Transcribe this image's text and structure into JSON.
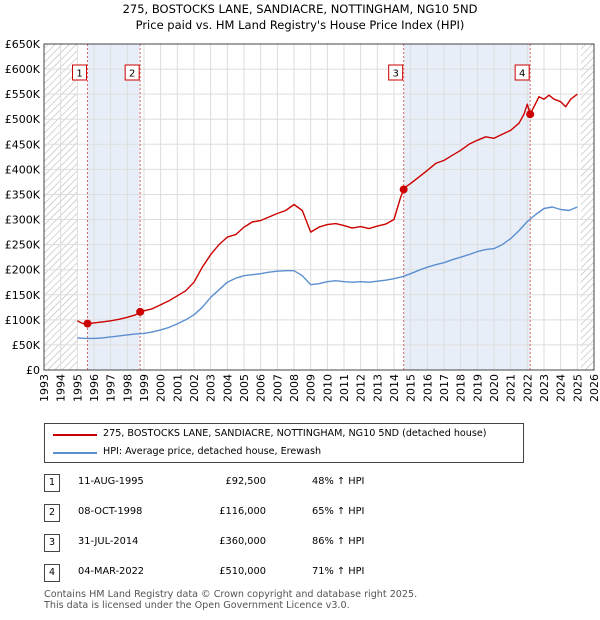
{
  "chart_data": {
    "type": "line",
    "title": "275, BOSTOCKS LANE, SANDIACRE, NOTTINGHAM, NG10 5ND",
    "subtitle": "Price paid vs. HM Land Registry's House Price Index (HPI)",
    "xlabel": "",
    "ylabel": "",
    "xlim": [
      1993,
      2026
    ],
    "ylim": [
      0,
      650000
    ],
    "x_ticks": [
      "1993",
      "1994",
      "1995",
      "1996",
      "1997",
      "1998",
      "1999",
      "2000",
      "2001",
      "2002",
      "2003",
      "2004",
      "2005",
      "2006",
      "2007",
      "2008",
      "2009",
      "2010",
      "2011",
      "2012",
      "2013",
      "2014",
      "2015",
      "2016",
      "2017",
      "2018",
      "2019",
      "2020",
      "2021",
      "2022",
      "2023",
      "2024",
      "2025",
      "2026"
    ],
    "y_ticks": [
      {
        "value": 0,
        "label": "£0"
      },
      {
        "value": 50000,
        "label": "£50K"
      },
      {
        "value": 100000,
        "label": "£100K"
      },
      {
        "value": 150000,
        "label": "£150K"
      },
      {
        "value": 200000,
        "label": "£200K"
      },
      {
        "value": 250000,
        "label": "£250K"
      },
      {
        "value": 300000,
        "label": "£300K"
      },
      {
        "value": 350000,
        "label": "£350K"
      },
      {
        "value": 400000,
        "label": "£400K"
      },
      {
        "value": 450000,
        "label": "£450K"
      },
      {
        "value": 500000,
        "label": "£500K"
      },
      {
        "value": 550000,
        "label": "£550K"
      },
      {
        "value": 600000,
        "label": "£600K"
      },
      {
        "value": 650000,
        "label": "£650K"
      }
    ],
    "hatched_ranges": [
      [
        1993,
        1995.0
      ],
      [
        2025.2,
        2026
      ]
    ],
    "shaded_ranges": [
      [
        1995.61,
        1998.77
      ],
      [
        2014.58,
        2022.17
      ]
    ],
    "series": [
      {
        "name": "275, BOSTOCKS LANE, SANDIACRE, NOTTINGHAM, NG10 5ND (detached house)",
        "color": "#cc0000",
        "x": [
          1995.0,
          1995.3,
          1995.61,
          1996.0,
          1996.5,
          1997.0,
          1997.5,
          1998.0,
          1998.5,
          1998.77,
          1999.0,
          1999.5,
          2000.0,
          2000.5,
          2001.0,
          2001.5,
          2002.0,
          2002.5,
          2003.0,
          2003.5,
          2004.0,
          2004.5,
          2005.0,
          2005.5,
          2006.0,
          2006.5,
          2007.0,
          2007.5,
          2008.0,
          2008.5,
          2009.0,
          2009.5,
          2010.0,
          2010.5,
          2011.0,
          2011.5,
          2012.0,
          2012.5,
          2013.0,
          2013.5,
          2014.0,
          2014.4,
          2014.58,
          2014.7,
          2015.0,
          2015.5,
          2016.0,
          2016.5,
          2017.0,
          2017.5,
          2018.0,
          2018.5,
          2019.0,
          2019.5,
          2020.0,
          2020.5,
          2021.0,
          2021.5,
          2021.8,
          2022.0,
          2022.17,
          2022.4,
          2022.7,
          2023.0,
          2023.3,
          2023.6,
          2024.0,
          2024.3,
          2024.6,
          2025.0
        ],
        "y": [
          98000,
          93000,
          92500,
          94000,
          96000,
          98000,
          101000,
          105000,
          110000,
          116000,
          118000,
          122000,
          130000,
          138000,
          148000,
          158000,
          175000,
          205000,
          230000,
          250000,
          265000,
          270000,
          285000,
          295000,
          298000,
          305000,
          312000,
          318000,
          330000,
          318000,
          275000,
          285000,
          290000,
          292000,
          288000,
          283000,
          286000,
          282000,
          287000,
          291000,
          300000,
          345000,
          360000,
          365000,
          372000,
          385000,
          398000,
          412000,
          418000,
          428000,
          438000,
          450000,
          458000,
          465000,
          462000,
          470000,
          478000,
          492000,
          510000,
          530000,
          510000,
          525000,
          545000,
          540000,
          548000,
          540000,
          535000,
          525000,
          540000,
          550000
        ]
      },
      {
        "name": "HPI: Average price, detached house, Erewash",
        "color": "#5b8fd0",
        "x": [
          1995.0,
          1995.5,
          1996.0,
          1996.5,
          1997.0,
          1997.5,
          1998.0,
          1998.5,
          1999.0,
          1999.5,
          2000.0,
          2000.5,
          2001.0,
          2001.5,
          2002.0,
          2002.5,
          2003.0,
          2003.5,
          2004.0,
          2004.5,
          2005.0,
          2005.5,
          2006.0,
          2006.5,
          2007.0,
          2007.5,
          2008.0,
          2008.5,
          2009.0,
          2009.5,
          2010.0,
          2010.5,
          2011.0,
          2011.5,
          2012.0,
          2012.5,
          2013.0,
          2013.5,
          2014.0,
          2014.5,
          2015.0,
          2015.5,
          2016.0,
          2016.5,
          2017.0,
          2017.5,
          2018.0,
          2018.5,
          2019.0,
          2019.5,
          2020.0,
          2020.5,
          2021.0,
          2021.5,
          2022.0,
          2022.5,
          2023.0,
          2023.5,
          2024.0,
          2024.5,
          2025.0
        ],
        "y": [
          64000,
          63000,
          63000,
          64000,
          66000,
          68000,
          70000,
          72000,
          73000,
          76000,
          80000,
          85000,
          92000,
          100000,
          110000,
          125000,
          145000,
          160000,
          175000,
          183000,
          188000,
          190000,
          192000,
          195000,
          197000,
          198000,
          198000,
          188000,
          170000,
          172000,
          176000,
          178000,
          176000,
          175000,
          176000,
          175000,
          177000,
          179000,
          182000,
          186000,
          192000,
          199000,
          205000,
          210000,
          214000,
          220000,
          225000,
          230000,
          236000,
          240000,
          242000,
          250000,
          262000,
          278000,
          296000,
          310000,
          322000,
          325000,
          320000,
          318000,
          325000
        ]
      }
    ],
    "sale_points": [
      {
        "label": "1",
        "x": 1995.61,
        "y": 92500
      },
      {
        "label": "2",
        "x": 1998.77,
        "y": 116000
      },
      {
        "label": "3",
        "x": 2014.58,
        "y": 360000
      },
      {
        "label": "4",
        "x": 2022.17,
        "y": 510000
      }
    ]
  },
  "legend": {
    "items": [
      {
        "label": "275, BOSTOCKS LANE, SANDIACRE, NOTTINGHAM, NG10 5ND (detached house)",
        "color": "#cc0000"
      },
      {
        "label": "HPI: Average price, detached house, Erewash",
        "color": "#5b8fd0"
      }
    ]
  },
  "sales": [
    {
      "num": "1",
      "date": "11-AUG-1995",
      "price": "£92,500",
      "hpi": "48% ↑ HPI"
    },
    {
      "num": "2",
      "date": "08-OCT-1998",
      "price": "£116,000",
      "hpi": "65% ↑ HPI"
    },
    {
      "num": "3",
      "date": "31-JUL-2014",
      "price": "£360,000",
      "hpi": "86% ↑ HPI"
    },
    {
      "num": "4",
      "date": "04-MAR-2022",
      "price": "£510,000",
      "hpi": "71% ↑ HPI"
    }
  ],
  "footer": {
    "line1": "Contains HM Land Registry data © Crown copyright and database right 2025.",
    "line2": "This data is licensed under the Open Government Licence v3.0."
  }
}
